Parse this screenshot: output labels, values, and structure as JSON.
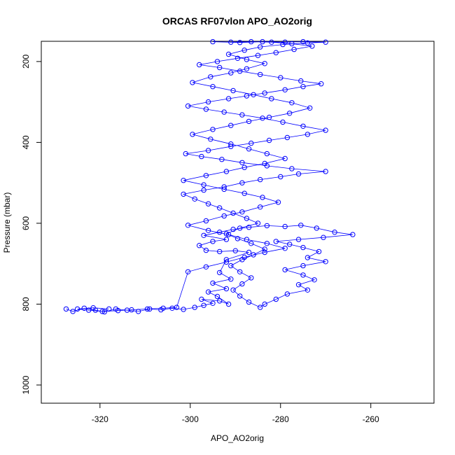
{
  "chart_data": {
    "type": "scatter",
    "title": "ORCAS RF07vlon APO_AO2orig",
    "xlabel": "APO_AO2orig",
    "ylabel": "Pressure (mbar)",
    "xlim": [
      -333,
      -246
    ],
    "ylim": [
      1045,
      150
    ],
    "y_reversed": true,
    "x_ticks": [
      -320,
      -300,
      -280,
      -260
    ],
    "y_ticks": [
      200,
      400,
      600,
      800,
      1000
    ],
    "grid": false,
    "legend": "none",
    "series_color": "#0000ff",
    "marker": "open-circle",
    "connected_by_lines": true,
    "series": [
      {
        "points": [
          [
            -327.5,
            812
          ],
          [
            -326.0,
            818
          ],
          [
            -323.5,
            810
          ],
          [
            -321.0,
            815
          ],
          [
            -319.0,
            819
          ],
          [
            -316.5,
            812
          ],
          [
            -314.0,
            815
          ],
          [
            -311.5,
            818
          ],
          [
            -309.0,
            812
          ],
          [
            -306.5,
            814
          ],
          [
            -304.0,
            810
          ],
          [
            -301.5,
            813
          ],
          [
            -299.0,
            808
          ],
          [
            -297.0,
            803
          ],
          [
            -295.0,
            798
          ],
          [
            -297.5,
            788
          ],
          [
            -293.5,
            792
          ],
          [
            -291.5,
            800
          ],
          [
            -294.0,
            781
          ],
          [
            -296.0,
            770
          ],
          [
            -292.0,
            762
          ],
          [
            -295.0,
            748
          ],
          [
            -291.0,
            738
          ],
          [
            -293.5,
            722
          ],
          [
            -292.0,
            690
          ],
          [
            -287.0,
            672
          ],
          [
            -290.0,
            668
          ],
          [
            -293.5,
            670
          ],
          [
            -296.5,
            667
          ],
          [
            -298.0,
            655
          ],
          [
            -295.0,
            645
          ],
          [
            -292.0,
            640
          ],
          [
            -297.0,
            630
          ],
          [
            -293.5,
            622
          ],
          [
            -290.5,
            615
          ],
          [
            -287.0,
            610
          ],
          [
            -283.0,
            606
          ],
          [
            -279.0,
            608
          ],
          [
            -275.5,
            605
          ],
          [
            -272.0,
            612
          ],
          [
            -268.0,
            622
          ],
          [
            -264.0,
            628
          ],
          [
            -270.5,
            635
          ],
          [
            -276.0,
            640
          ],
          [
            -281.0,
            645
          ],
          [
            -278.0,
            652
          ],
          [
            -275.0,
            660
          ],
          [
            -271.5,
            670
          ],
          [
            -274.0,
            685
          ],
          [
            -270.0,
            695
          ],
          [
            -275.0,
            705
          ],
          [
            -279.0,
            715
          ],
          [
            -275.0,
            728
          ],
          [
            -272.5,
            740
          ],
          [
            -276.0,
            752
          ],
          [
            -274.0,
            765
          ],
          [
            -278.5,
            775
          ],
          [
            -281.0,
            788
          ],
          [
            -283.5,
            800
          ],
          [
            -284.5,
            808
          ],
          [
            -287.0,
            795
          ],
          [
            -289.0,
            780
          ],
          [
            -290.5,
            765
          ],
          [
            -288.5,
            750
          ],
          [
            -286.5,
            735
          ],
          [
            -289.0,
            720
          ],
          [
            -291.0,
            705
          ],
          [
            -288.5,
            690
          ],
          [
            -286.0,
            678
          ],
          [
            -283.5,
            664
          ],
          [
            -286.5,
            650
          ],
          [
            -289.5,
            638
          ],
          [
            -292.0,
            626
          ],
          [
            -289.0,
            612
          ],
          [
            -285.0,
            600
          ],
          [
            -287.5,
            588
          ],
          [
            -290.5,
            575
          ],
          [
            -293.5,
            562
          ],
          [
            -296.0,
            552
          ],
          [
            -299.0,
            540
          ],
          [
            -301.5,
            528
          ],
          [
            -297.0,
            518
          ],
          [
            -292.5,
            510
          ],
          [
            -288.5,
            500
          ],
          [
            -284.5,
            492
          ],
          [
            -280.0,
            485
          ],
          [
            -276.0,
            478
          ],
          [
            -270.0,
            472
          ],
          [
            -277.5,
            465
          ],
          [
            -283.0,
            458
          ],
          [
            -288.5,
            450
          ],
          [
            -293.0,
            442
          ],
          [
            -297.5,
            435
          ],
          [
            -301.0,
            428
          ],
          [
            -296.0,
            420
          ],
          [
            -291.0,
            410
          ],
          [
            -286.5,
            402
          ],
          [
            -282.5,
            395
          ],
          [
            -278.5,
            388
          ],
          [
            -274.0,
            380
          ],
          [
            -270.0,
            370
          ],
          [
            -275.0,
            360
          ],
          [
            -279.5,
            350
          ],
          [
            -284.0,
            340
          ],
          [
            -288.5,
            332
          ],
          [
            -292.5,
            325
          ],
          [
            -296.5,
            318
          ],
          [
            -300.5,
            310
          ],
          [
            -296.0,
            300
          ],
          [
            -291.5,
            292
          ],
          [
            -287.5,
            285
          ],
          [
            -283.5,
            278
          ],
          [
            -279.0,
            270
          ],
          [
            -275.0,
            262
          ],
          [
            -271.0,
            255
          ],
          [
            -275.5,
            248
          ],
          [
            -280.0,
            240
          ],
          [
            -284.5,
            232
          ],
          [
            -289.0,
            224
          ],
          [
            -293.5,
            215
          ],
          [
            -298.0,
            208
          ],
          [
            -294.0,
            200
          ],
          [
            -289.5,
            192
          ],
          [
            -285.0,
            185
          ],
          [
            -281.0,
            178
          ],
          [
            -277.0,
            170
          ],
          [
            -273.0,
            162
          ],
          [
            -277.5,
            156
          ],
          [
            -282.0,
            152
          ],
          [
            -286.5,
            151
          ],
          [
            -291.0,
            152
          ],
          [
            -295.0,
            151
          ],
          [
            -289.0,
            153
          ],
          [
            -284.0,
            151
          ],
          [
            -279.0,
            152
          ],
          [
            -275.0,
            151
          ],
          [
            -270.0,
            152
          ],
          [
            -274.0,
            154
          ],
          [
            -279.5,
            158
          ],
          [
            -284.5,
            164
          ],
          [
            -288.0,
            172
          ],
          [
            -291.5,
            182
          ],
          [
            -287.5,
            195
          ],
          [
            -283.5,
            205
          ],
          [
            -287.5,
            218
          ],
          [
            -291.0,
            228
          ],
          [
            -295.5,
            238
          ],
          [
            -299.5,
            252
          ],
          [
            -295.0,
            262
          ],
          [
            -290.5,
            272
          ],
          [
            -286.0,
            282
          ],
          [
            -282.0,
            292
          ],
          [
            -277.5,
            302
          ],
          [
            -273.5,
            315
          ],
          [
            -278.0,
            328
          ],
          [
            -282.5,
            338
          ],
          [
            -287.0,
            348
          ],
          [
            -291.0,
            358
          ],
          [
            -295.0,
            368
          ],
          [
            -299.5,
            380
          ],
          [
            -295.5,
            392
          ],
          [
            -291.0,
            404
          ],
          [
            -287.0,
            416
          ],
          [
            -283.0,
            428
          ],
          [
            -279.0,
            440
          ],
          [
            -283.5,
            452
          ],
          [
            -288.0,
            462
          ],
          [
            -292.0,
            472
          ],
          [
            -296.5,
            482
          ],
          [
            -301.5,
            494
          ],
          [
            -297.0,
            505
          ],
          [
            -292.5,
            516
          ],
          [
            -288.0,
            526
          ],
          [
            -284.0,
            536
          ],
          [
            -280.5,
            548
          ],
          [
            -284.5,
            560
          ],
          [
            -288.5,
            572
          ],
          [
            -292.5,
            582
          ],
          [
            -296.5,
            594
          ],
          [
            -300.5,
            605
          ],
          [
            -296.0,
            618
          ],
          [
            -291.5,
            628
          ],
          [
            -287.5,
            640
          ],
          [
            -283.0,
            650
          ],
          [
            -279.0,
            662
          ],
          [
            -283.5,
            672
          ],
          [
            -288.0,
            684
          ],
          [
            -292.0,
            696
          ],
          [
            -296.5,
            708
          ],
          [
            -300.5,
            720
          ],
          [
            -303.0,
            808
          ],
          [
            -306.0,
            810
          ],
          [
            -309.5,
            812
          ],
          [
            -313.0,
            814
          ],
          [
            -316.0,
            816
          ],
          [
            -319.5,
            818
          ],
          [
            -322.5,
            815
          ],
          [
            -325.0,
            812
          ],
          [
            -321.5,
            809
          ],
          [
            -318.0,
            812
          ]
        ]
      }
    ]
  }
}
